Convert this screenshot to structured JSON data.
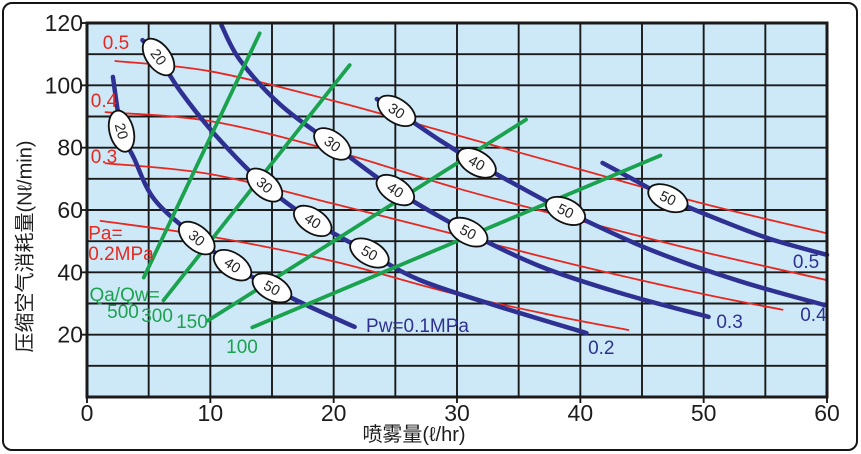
{
  "window": {
    "background": "#ffffff",
    "frame_border_color": "#151515"
  },
  "chart_data": {
    "type": "line",
    "title": "",
    "xlabel": "喷雾量(ℓ/hr)",
    "ylabel": "压缩空气消耗量(Nℓ/min)",
    "xlim": [
      0,
      60
    ],
    "ylim": [
      0,
      120
    ],
    "x_ticks": [
      0,
      10,
      20,
      30,
      40,
      50,
      60
    ],
    "y_ticks": [
      20,
      40,
      60,
      80,
      100,
      120
    ],
    "x_grid_step": 5,
    "y_grid_step": 10,
    "grid": true,
    "legend_position": "none",
    "colors": {
      "water": "#2e3192",
      "air": "#e62820",
      "ratio": "#1ba24e",
      "grid": "#1a1a1a",
      "plot_bg": "#cde9f8",
      "tick": "#1c1c1c",
      "oval_fill": "#ffffff",
      "oval_stroke": "#111111"
    },
    "water_curves": [
      {
        "name": "Pw=0.1MPa",
        "points": [
          [
            2.1,
            102.7
          ],
          [
            2.8,
            85.3
          ],
          [
            3.8,
            76.7
          ],
          [
            5.5,
            63.2
          ],
          [
            8.9,
            51.0
          ],
          [
            11.8,
            42.3
          ],
          [
            15.0,
            35.0
          ],
          [
            18.1,
            28.9
          ],
          [
            21.7,
            22.5
          ]
        ]
      },
      {
        "name": "Pw=0.2MPa",
        "points": [
          [
            4.5,
            114.5
          ],
          [
            5.8,
            109.1
          ],
          [
            7.5,
            98.5
          ],
          [
            10.4,
            84.1
          ],
          [
            14.4,
            68.0
          ],
          [
            18.3,
            56.5
          ],
          [
            22.9,
            46.2
          ],
          [
            27.0,
            37.5
          ],
          [
            33.5,
            28.9
          ],
          [
            40.5,
            20.5
          ]
        ]
      },
      {
        "name": "Pw=0.3MPa",
        "points": [
          [
            10.9,
            119.3
          ],
          [
            12.4,
            108.1
          ],
          [
            15.7,
            93.7
          ],
          [
            19.9,
            81.2
          ],
          [
            25.0,
            66.4
          ],
          [
            30.9,
            52.9
          ],
          [
            36.7,
            42.0
          ],
          [
            43.2,
            33.4
          ],
          [
            50.4,
            25.7
          ]
        ]
      },
      {
        "name": "Pw=0.4MPa",
        "points": [
          [
            23.5,
            95.6
          ],
          [
            25.1,
            91.8
          ],
          [
            28.6,
            82.4
          ],
          [
            31.6,
            75.1
          ],
          [
            35.1,
            67.4
          ],
          [
            38.8,
            59.7
          ],
          [
            45.7,
            47.2
          ],
          [
            52.9,
            37.2
          ],
          [
            59.8,
            29.5
          ]
        ]
      },
      {
        "name": "Pw=0.5MPa",
        "points": [
          [
            41.8,
            75.1
          ],
          [
            44.4,
            69.6
          ],
          [
            47.1,
            63.8
          ],
          [
            51.3,
            56.8
          ],
          [
            55.4,
            50.7
          ],
          [
            60.0,
            45.6
          ]
        ]
      }
    ],
    "air_curves": [
      {
        "name": "Pa=0.2MPa",
        "points": [
          [
            1.1,
            56.5
          ],
          [
            10.0,
            51.5
          ],
          [
            20.0,
            43.5
          ],
          [
            29.4,
            33.5
          ],
          [
            38.0,
            26.0
          ],
          [
            43.9,
            21.5
          ]
        ]
      },
      {
        "name": "Pa=0.3MPa",
        "points": [
          [
            1.5,
            75.0
          ],
          [
            10.0,
            71.5
          ],
          [
            20.0,
            62.0
          ],
          [
            30.0,
            52.0
          ],
          [
            40.0,
            42.0
          ],
          [
            50.0,
            33.0
          ],
          [
            56.4,
            28.0
          ]
        ]
      },
      {
        "name": "Pa=0.4MPa",
        "points": [
          [
            1.5,
            91.4
          ],
          [
            10.0,
            88.5
          ],
          [
            20.0,
            79.0
          ],
          [
            30.0,
            67.0
          ],
          [
            40.0,
            56.5
          ],
          [
            50.0,
            46.5
          ],
          [
            60.0,
            37.5
          ]
        ]
      },
      {
        "name": "Pa=0.5MPa",
        "points": [
          [
            2.3,
            107.8
          ],
          [
            10.0,
            104.5
          ],
          [
            20.0,
            95.0
          ],
          [
            30.0,
            84.0
          ],
          [
            40.0,
            73.0
          ],
          [
            50.0,
            62.0
          ],
          [
            60.0,
            52.5
          ]
        ]
      }
    ],
    "ratio_lines": [
      {
        "ratio": 500,
        "x_range": [
          4.6,
          14.0
        ]
      },
      {
        "ratio": 300,
        "x_range": [
          6.2,
          21.3
        ]
      },
      {
        "ratio": 150,
        "x_range": [
          9.8,
          35.6
        ]
      },
      {
        "ratio": 100,
        "x_range": [
          13.4,
          46.5
        ]
      }
    ],
    "ovals": [
      {
        "label": "20",
        "curve": 0,
        "x": 2.8,
        "y": 85.3
      },
      {
        "label": "30",
        "curve": 0,
        "x": 8.9,
        "y": 51.0
      },
      {
        "label": "40",
        "curve": 0,
        "x": 11.8,
        "y": 42.3
      },
      {
        "label": "50",
        "curve": 0,
        "x": 15.0,
        "y": 35.0
      },
      {
        "label": "20",
        "curve": 1,
        "x": 5.8,
        "y": 109.1
      },
      {
        "label": "30",
        "curve": 1,
        "x": 14.4,
        "y": 68.0
      },
      {
        "label": "40",
        "curve": 1,
        "x": 18.3,
        "y": 56.5
      },
      {
        "label": "50",
        "curve": 1,
        "x": 22.9,
        "y": 46.2
      },
      {
        "label": "30",
        "curve": 2,
        "x": 19.9,
        "y": 81.2
      },
      {
        "label": "40",
        "curve": 2,
        "x": 25.0,
        "y": 66.4
      },
      {
        "label": "50",
        "curve": 2,
        "x": 30.9,
        "y": 52.9
      },
      {
        "label": "30",
        "curve": 3,
        "x": 25.1,
        "y": 91.8
      },
      {
        "label": "40",
        "curve": 3,
        "x": 31.6,
        "y": 75.1
      },
      {
        "label": "50",
        "curve": 3,
        "x": 38.8,
        "y": 59.7
      },
      {
        "label": "50",
        "curve": 4,
        "x": 47.1,
        "y": 63.8
      }
    ],
    "labels": [
      {
        "text": "0.5",
        "x": 2.35,
        "y": 113.6,
        "color": "air",
        "anchor": "middle"
      },
      {
        "text": "0.4",
        "x": 1.38,
        "y": 95.0,
        "color": "air",
        "anchor": "middle"
      },
      {
        "text": "0.3",
        "x": 1.38,
        "y": 77.0,
        "color": "air",
        "anchor": "middle"
      },
      {
        "text": "Pa=",
        "x": 0.1,
        "y": 52.4,
        "color": "air",
        "anchor": "start"
      },
      {
        "text": "0.2MPa",
        "x": 0.1,
        "y": 45.9,
        "color": "air",
        "anchor": "start"
      },
      {
        "text": "Qa/Qw=",
        "x": 0.2,
        "y": 32.8,
        "color": "ratio",
        "anchor": "start"
      },
      {
        "text": "500",
        "x": 2.92,
        "y": 27.3,
        "color": "ratio",
        "anchor": "middle"
      },
      {
        "text": "300",
        "x": 5.68,
        "y": 26.0,
        "color": "ratio",
        "anchor": "middle"
      },
      {
        "text": "150",
        "x": 8.51,
        "y": 24.1,
        "color": "ratio",
        "anchor": "middle"
      },
      {
        "text": "100",
        "x": 12.57,
        "y": 16.0,
        "color": "ratio",
        "anchor": "middle"
      },
      {
        "text": "Pw=0.1MPa",
        "x": 26.8,
        "y": 22.8,
        "color": "water",
        "anchor": "middle"
      },
      {
        "text": "0.2",
        "x": 41.7,
        "y": 15.7,
        "color": "water",
        "anchor": "middle"
      },
      {
        "text": "0.3",
        "x": 52.1,
        "y": 24.1,
        "color": "water",
        "anchor": "middle"
      },
      {
        "text": "0.4",
        "x": 58.9,
        "y": 26.3,
        "color": "water",
        "anchor": "middle"
      },
      {
        "text": "0.5",
        "x": 58.3,
        "y": 43.3,
        "color": "water",
        "anchor": "middle"
      }
    ]
  }
}
